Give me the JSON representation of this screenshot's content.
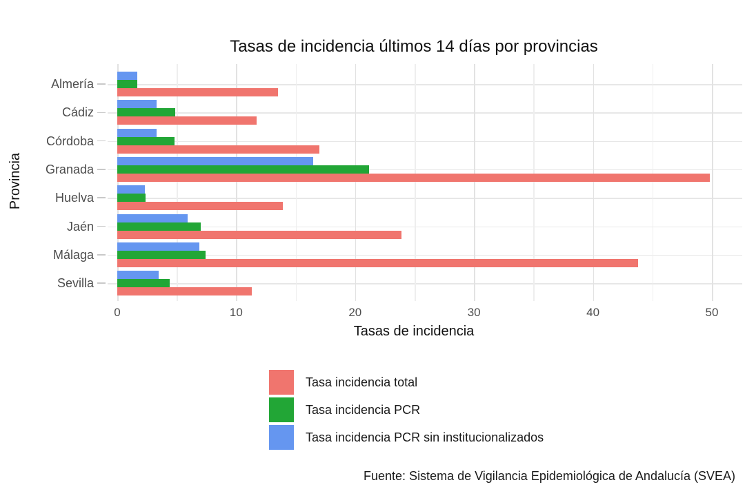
{
  "chart_data": {
    "type": "bar",
    "orientation": "horizontal",
    "title": "Tasas de incidencia últimos 14 días por provincias",
    "xlabel": "Tasas de incidencia",
    "ylabel": "Provincia",
    "caption": "Fuente: Sistema de Vigilancia Epidemiológica de Andalucía (SVEA)",
    "categories": [
      "Almería",
      "Cádiz",
      "Córdoba",
      "Granada",
      "Huelva",
      "Jaén",
      "Málaga",
      "Sevilla"
    ],
    "series": [
      {
        "name": "Tasa incidencia total",
        "color": "#F0756E",
        "values": [
          13.5,
          11.7,
          17.0,
          49.8,
          13.9,
          23.9,
          43.8,
          11.3
        ]
      },
      {
        "name": "Tasa incidencia PCR",
        "color": "#22A636",
        "values": [
          1.7,
          4.9,
          4.8,
          21.2,
          2.4,
          7.0,
          7.4,
          4.4
        ]
      },
      {
        "name": "Tasa incidencia PCR sin institucionalizados",
        "color": "#6596F0",
        "values": [
          1.7,
          3.3,
          3.3,
          16.5,
          2.3,
          5.9,
          6.9,
          3.5
        ]
      }
    ],
    "x_ticks": [
      0,
      10,
      20,
      30,
      40,
      50
    ],
    "xlim": [
      0,
      52
    ],
    "grid": "both",
    "grid_minor_step": 5,
    "legend_position": "bottom-left",
    "colors": {
      "background": "#ffffff",
      "grid_major": "#e2e2e2",
      "grid_minor": "#eeeeee",
      "axis_text": "#4d4d4d",
      "title_text": "#111111"
    }
  }
}
